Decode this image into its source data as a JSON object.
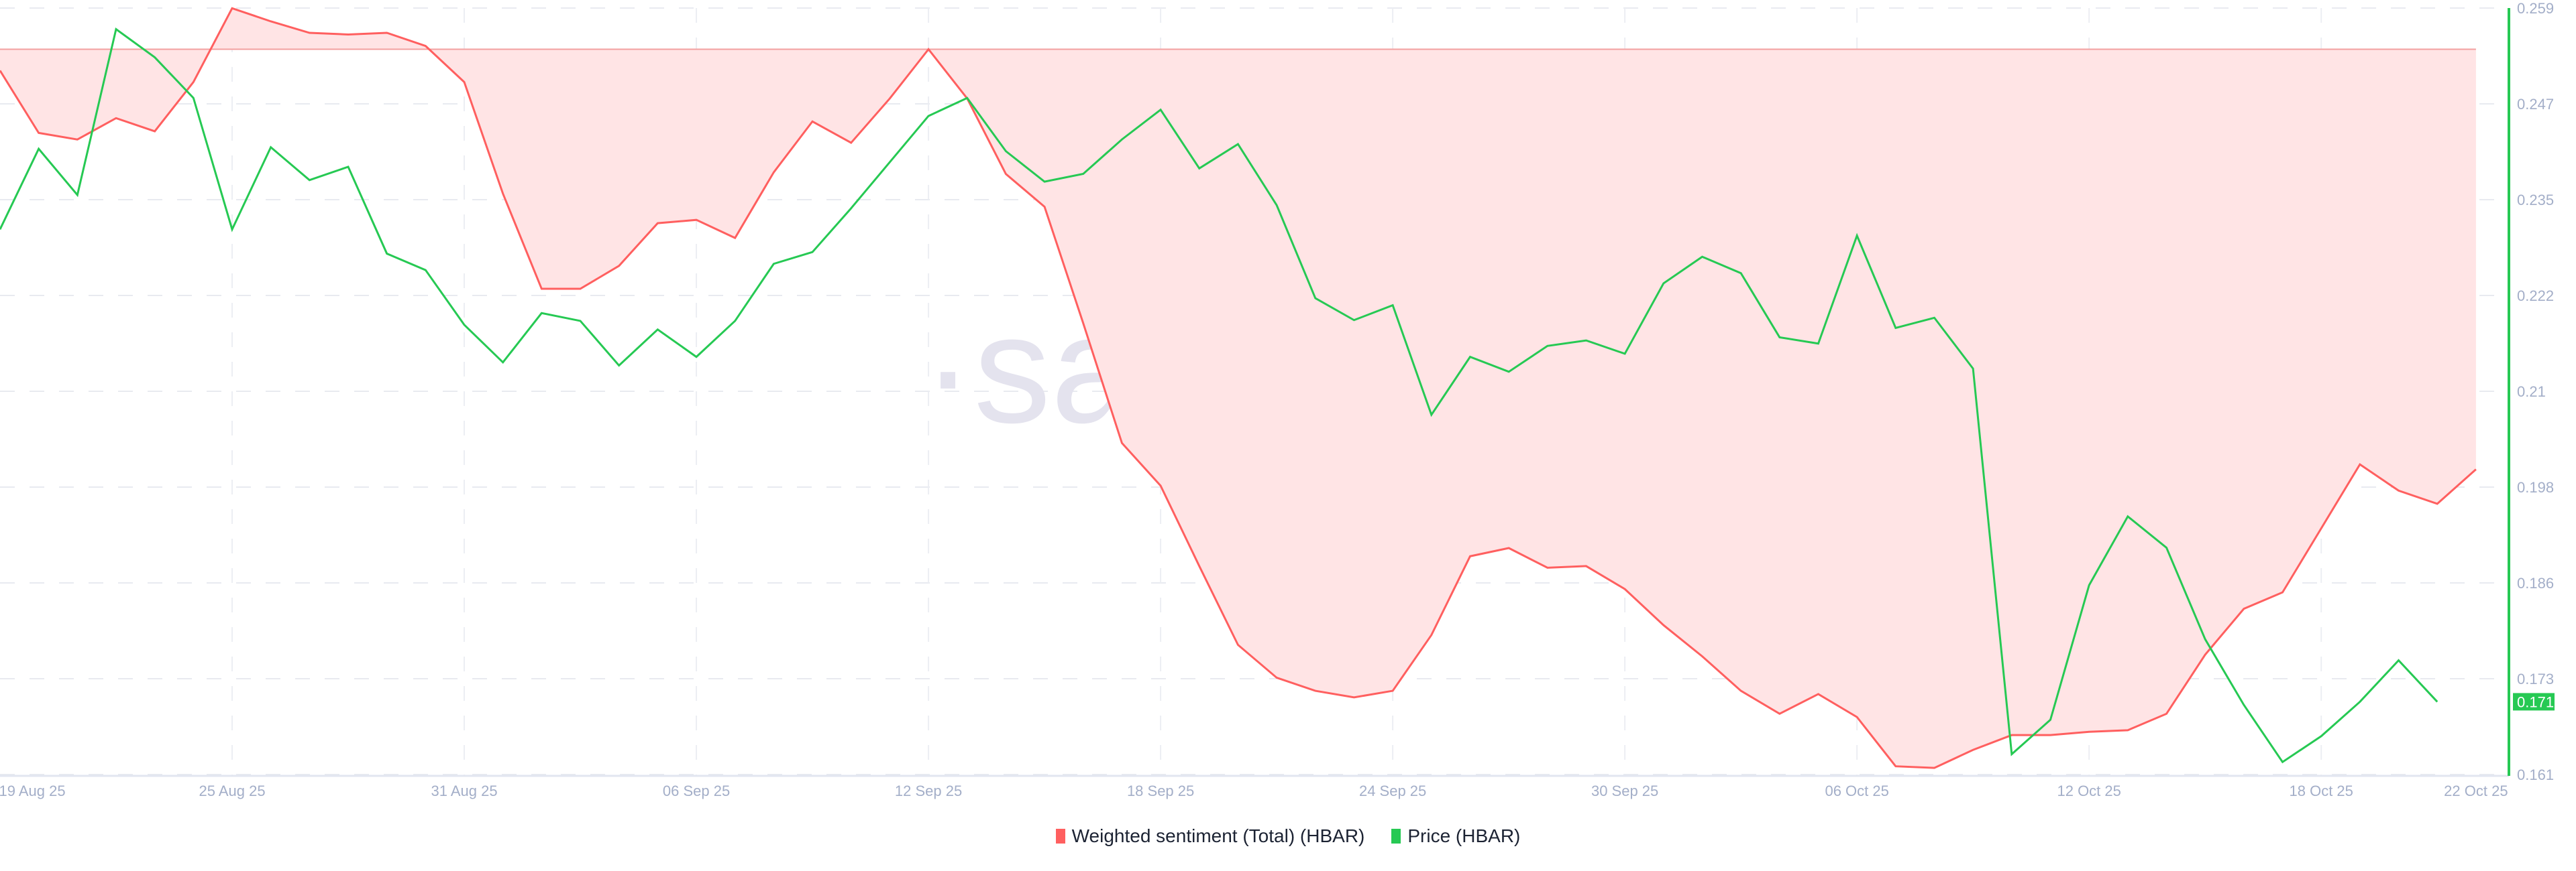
{
  "chart_data": {
    "type": "line",
    "title": "",
    "watermark": "·santiment·",
    "x_tick_labels": [
      "19 Aug 25",
      "25 Aug 25",
      "31 Aug 25",
      "06 Sep 25",
      "12 Sep 25",
      "18 Sep 25",
      "24 Sep 25",
      "30 Sep 25",
      "06 Oct 25",
      "12 Oct 25",
      "18 Oct 25",
      "22 Oct 25"
    ],
    "x_range": [
      "2025-08-19",
      "2025-10-22"
    ],
    "y_right": {
      "ticks": [
        "0.259",
        "0.247",
        "0.235",
        "0.222",
        "0.21",
        "0.198",
        "0.186",
        "0.173",
        "0.161"
      ],
      "range": [
        0.161,
        0.259
      ]
    },
    "grid": true,
    "legend_placement": "bottom-center",
    "current_price_label": "0.171",
    "series": [
      {
        "name": "Weighted sentiment (Total) (HBAR)",
        "color": "#ff5f5f",
        "fill": "#ffe4e5",
        "axis": "hidden-left",
        "start_date": "2025-08-19",
        "values": [
          -1.3,
          -5.1,
          -5.5,
          -4.2,
          -5.0,
          -2.0,
          2.5,
          1.7,
          1.0,
          0.9,
          1.0,
          0.2,
          -2.0,
          -8.8,
          -14.6,
          -14.6,
          -13.2,
          -10.6,
          -10.4,
          -11.5,
          -7.5,
          -4.4,
          -5.7,
          -3.0,
          0.0,
          -3.0,
          -7.6,
          -9.6,
          -16.7,
          -24.0,
          -26.6,
          -31.5,
          -36.3,
          -38.3,
          -39.1,
          -39.5,
          -39.1,
          -35.7,
          -30.9,
          -30.4,
          -31.6,
          -31.5,
          -32.9,
          -35.1,
          -37.0,
          -39.1,
          -40.5,
          -39.3,
          -40.7,
          -43.7,
          -43.8,
          -42.7,
          -41.8,
          -41.8,
          -41.6,
          -41.5,
          -40.5,
          -36.9,
          -34.1,
          -33.1,
          -29.2,
          -25.3,
          -26.9,
          -27.7,
          -25.6
        ]
      },
      {
        "name": "Price (HBAR)",
        "color": "#26c953",
        "axis": "right",
        "start_date": "2025-08-19",
        "values": [
          0.2307,
          0.241,
          0.2351,
          0.2563,
          0.2527,
          0.2475,
          0.2307,
          0.2412,
          0.237,
          0.2387,
          0.2276,
          0.2255,
          0.2185,
          0.2137,
          0.22,
          0.219,
          0.2133,
          0.2179,
          0.2144,
          0.219,
          0.2263,
          0.2278,
          0.2334,
          0.2393,
          0.2452,
          0.2475,
          0.2407,
          0.2368,
          0.2378,
          0.2422,
          0.246,
          0.2385,
          0.2416,
          0.2338,
          0.2219,
          0.2191,
          0.221,
          0.207,
          0.2144,
          0.2125,
          0.2158,
          0.2165,
          0.2148,
          0.2238,
          0.2272,
          0.2251,
          0.2169,
          0.2161,
          0.2299,
          0.2181,
          0.2194,
          0.2129,
          0.1636,
          0.168,
          0.1852,
          0.194,
          0.19,
          0.1783,
          0.1699,
          0.1626,
          0.1659,
          0.1703,
          0.1756,
          0.1703
        ]
      }
    ]
  }
}
